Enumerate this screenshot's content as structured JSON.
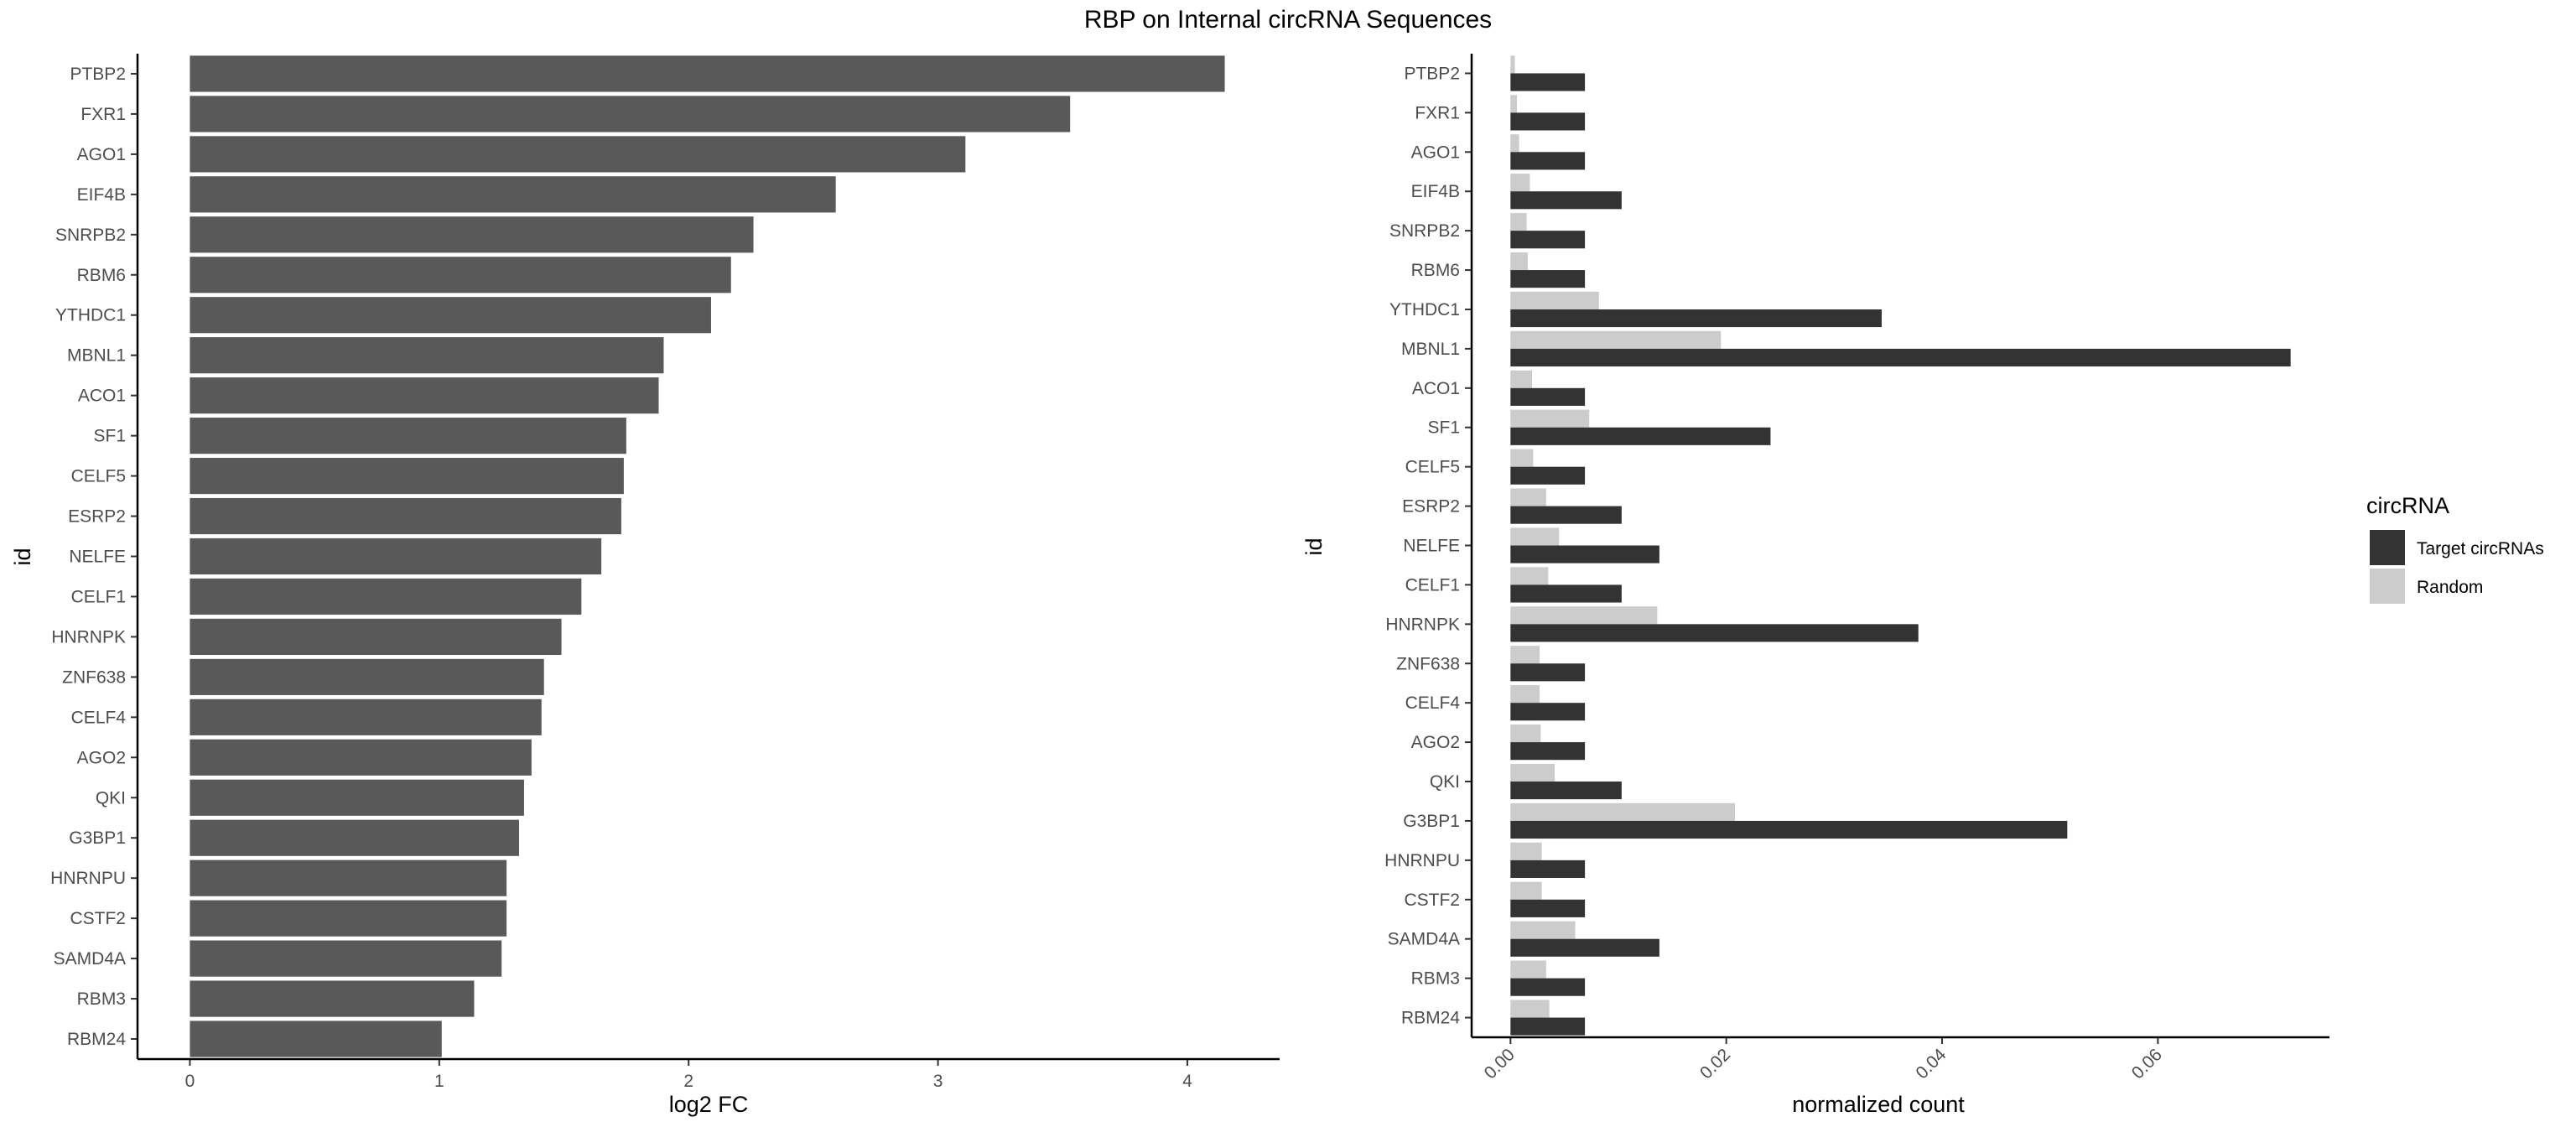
{
  "figure": {
    "title": "RBP on Internal circRNA Sequences"
  },
  "chart_data": [
    {
      "type": "bar",
      "orientation": "horizontal",
      "categories": [
        "PTBP2",
        "FXR1",
        "AGO1",
        "EIF4B",
        "SNRPB2",
        "RBM6",
        "YTHDC1",
        "MBNL1",
        "ACO1",
        "SF1",
        "CELF5",
        "ESRP2",
        "NELFE",
        "CELF1",
        "HNRNPK",
        "ZNF638",
        "CELF4",
        "AGO2",
        "QKI",
        "G3BP1",
        "HNRNPU",
        "CSTF2",
        "SAMD4A",
        "RBM3",
        "RBM24"
      ],
      "values": [
        4.15,
        3.53,
        3.11,
        2.59,
        2.26,
        2.17,
        2.09,
        1.9,
        1.88,
        1.75,
        1.74,
        1.73,
        1.65,
        1.57,
        1.49,
        1.42,
        1.41,
        1.37,
        1.34,
        1.32,
        1.27,
        1.27,
        1.25,
        1.14,
        1.01
      ],
      "xlabel": "log2 FC",
      "ylabel": "id",
      "xlim": [
        -0.21,
        4.37
      ],
      "xticks": [
        "0",
        "1",
        "2",
        "3",
        "4"
      ],
      "xtick_values": [
        0,
        1,
        2,
        3,
        4
      ],
      "grid": false,
      "colors": {
        "bar": "#595959"
      }
    },
    {
      "type": "bar",
      "orientation": "horizontal",
      "grouping": "dodged",
      "categories": [
        "PTBP2",
        "FXR1",
        "AGO1",
        "EIF4B",
        "SNRPB2",
        "RBM6",
        "YTHDC1",
        "MBNL1",
        "ACO1",
        "SF1",
        "CELF5",
        "ESRP2",
        "NELFE",
        "CELF1",
        "HNRNPK",
        "ZNF638",
        "CELF4",
        "AGO2",
        "QKI",
        "G3BP1",
        "HNRNPU",
        "CSTF2",
        "SAMD4A",
        "RBM3",
        "RBM24"
      ],
      "series": [
        {
          "name": "Target circRNAs",
          "color": "#333333",
          "values": [
            0.0069,
            0.0069,
            0.0069,
            0.0103,
            0.0069,
            0.0069,
            0.0344,
            0.0723,
            0.0069,
            0.0241,
            0.0069,
            0.0103,
            0.0138,
            0.0103,
            0.0378,
            0.0069,
            0.0069,
            0.0069,
            0.0103,
            0.0516,
            0.0069,
            0.0069,
            0.0138,
            0.0069,
            0.0069
          ]
        },
        {
          "name": "Random",
          "color": "#cccccc",
          "values": [
            0.0004,
            0.0006,
            0.0008,
            0.0018,
            0.0015,
            0.0016,
            0.0082,
            0.0195,
            0.002,
            0.0073,
            0.0021,
            0.0033,
            0.0045,
            0.0035,
            0.0136,
            0.0027,
            0.0027,
            0.0028,
            0.0041,
            0.0208,
            0.0029,
            0.0029,
            0.006,
            0.0033,
            0.0036
          ]
        }
      ],
      "xlabel": "normalized count",
      "ylabel": "id",
      "xlim": [
        -0.0036,
        0.0759
      ],
      "xticks": [
        "0.00",
        "0.02",
        "0.04",
        "0.06"
      ],
      "xtick_values": [
        0,
        0.02,
        0.04,
        0.06
      ],
      "xtick_rotation": 45,
      "grid": false,
      "legend": {
        "title": "circRNA",
        "position": "right",
        "entries": [
          "Target circRNAs",
          "Random"
        ]
      }
    }
  ]
}
